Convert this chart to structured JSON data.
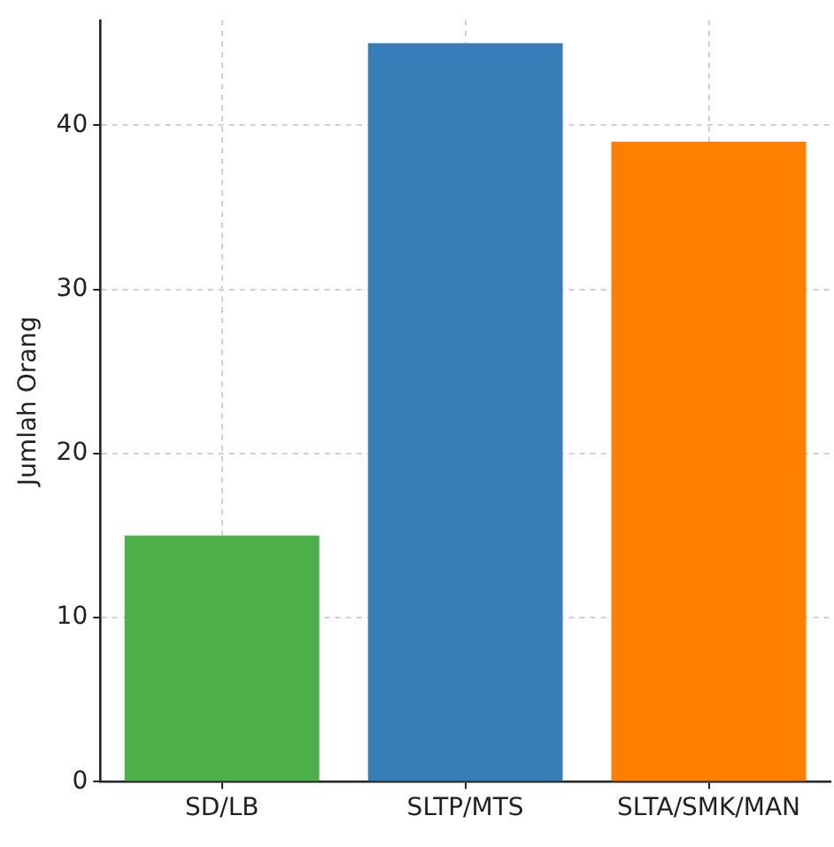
{
  "chart_data": {
    "type": "bar",
    "ylabel": "Jumlah Orang",
    "categories": [
      "SD/LB",
      "SLTP/MTS",
      "SLTA/SMK/MAN"
    ],
    "values": [
      15,
      45,
      39
    ],
    "colors": [
      "#4daf4a",
      "#377eb8",
      "#ff7f00"
    ],
    "ylim": [
      0,
      46.4
    ],
    "yticks": [
      0,
      10,
      20,
      30,
      40
    ],
    "grid": true
  }
}
